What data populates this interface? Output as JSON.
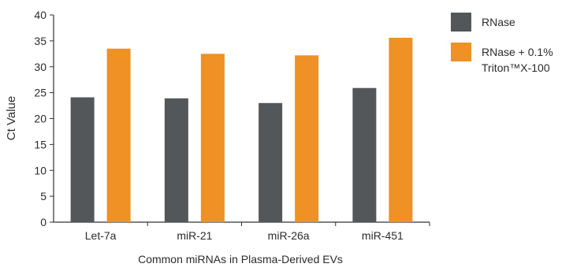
{
  "chart_data": {
    "type": "bar",
    "title": "",
    "xlabel": "Common miRNAs in Plasma-Derived EVs",
    "ylabel": "Ct Value",
    "ylim": [
      0,
      40
    ],
    "yticks": [
      0,
      5,
      10,
      15,
      20,
      25,
      30,
      35,
      40
    ],
    "grid": false,
    "legend_position": "top-right",
    "categories": [
      "Let-7a",
      "miR-21",
      "miR-26a",
      "miR-451"
    ],
    "series": [
      {
        "name": "RNase",
        "legend_lines": [
          "RNase"
        ],
        "color": "#53575a",
        "values": [
          24.1,
          23.9,
          23.0,
          25.9
        ]
      },
      {
        "name": "RNase + 0.1% Triton™X-100",
        "legend_lines": [
          "RNase + 0.1%",
          "Triton™X-100"
        ],
        "color": "#ef9124",
        "values": [
          33.5,
          32.5,
          32.2,
          35.6
        ]
      }
    ]
  }
}
